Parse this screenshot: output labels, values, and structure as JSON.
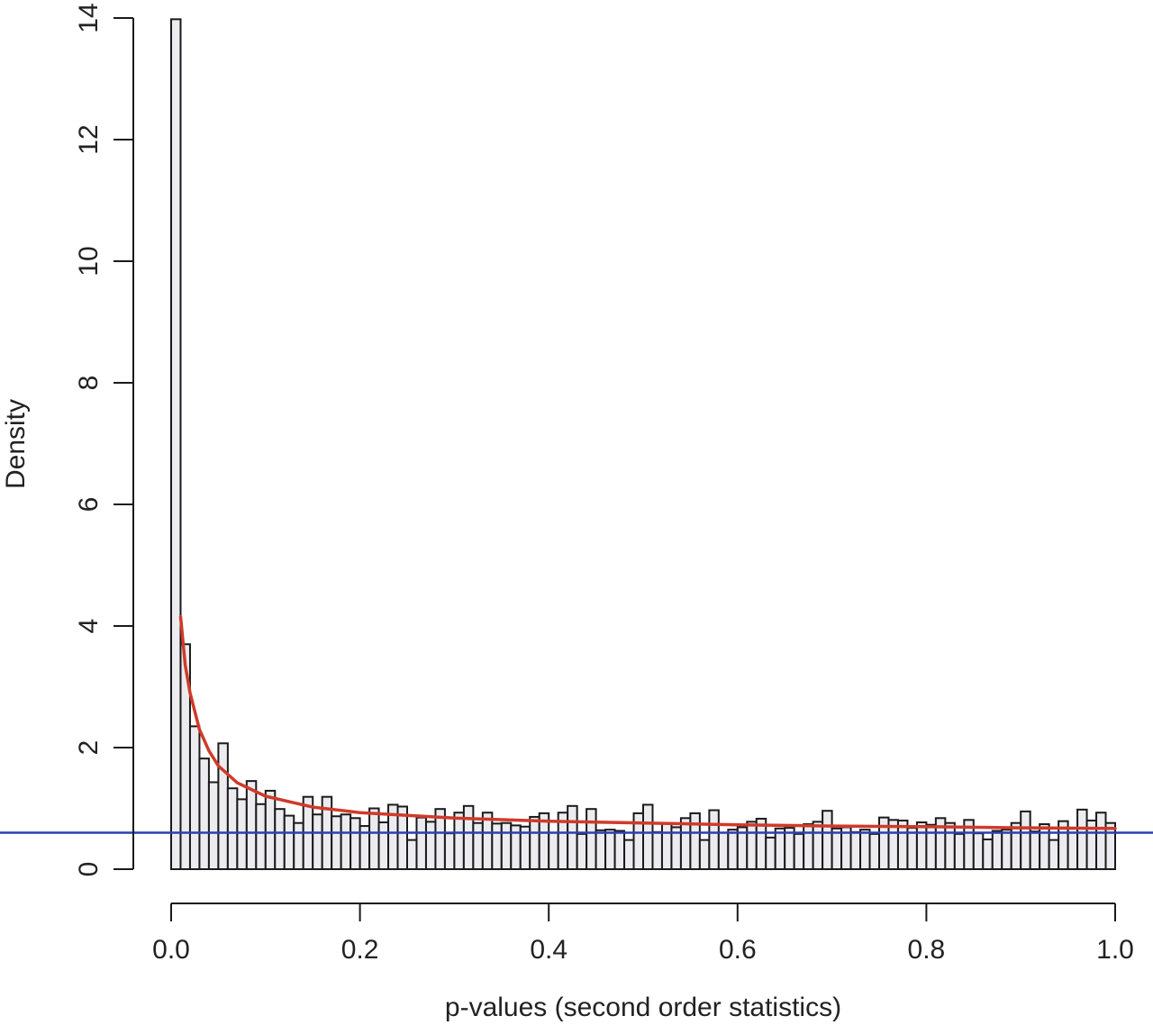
{
  "chart_data": {
    "type": "bar",
    "subtype": "histogram",
    "title": "",
    "xlabel": "p-values (second order statistics)",
    "ylabel": "Density",
    "xlim": [
      0,
      1
    ],
    "ylim": [
      0,
      14
    ],
    "x_ticks": [
      "0.0",
      "0.2",
      "0.4",
      "0.6",
      "0.8",
      "1.0"
    ],
    "y_ticks": [
      "0",
      "2",
      "4",
      "6",
      "8",
      "10",
      "12",
      "14"
    ],
    "bin_width": 0.01,
    "values": [
      13.98,
      3.7,
      2.35,
      1.82,
      1.43,
      2.07,
      1.33,
      1.15,
      1.45,
      1.07,
      1.29,
      0.99,
      0.88,
      0.76,
      1.19,
      0.9,
      1.19,
      0.87,
      0.9,
      0.84,
      0.71,
      1.0,
      0.77,
      1.06,
      1.03,
      0.48,
      0.85,
      0.78,
      0.99,
      0.59,
      0.93,
      1.04,
      0.76,
      0.93,
      0.75,
      0.76,
      0.72,
      0.7,
      0.86,
      0.92,
      0.6,
      0.93,
      1.04,
      0.58,
      0.99,
      0.64,
      0.65,
      0.63,
      0.48,
      0.92,
      1.06,
      0.61,
      0.75,
      0.69,
      0.84,
      0.92,
      0.48,
      0.97,
      0.6,
      0.65,
      0.69,
      0.78,
      0.83,
      0.52,
      0.67,
      0.68,
      0.58,
      0.74,
      0.78,
      0.96,
      0.67,
      0.69,
      0.61,
      0.65,
      0.58,
      0.85,
      0.81,
      0.8,
      0.68,
      0.77,
      0.73,
      0.84,
      0.76,
      0.58,
      0.81,
      0.59,
      0.49,
      0.63,
      0.65,
      0.76,
      0.95,
      0.62,
      0.74,
      0.48,
      0.79,
      0.67,
      0.98,
      0.8,
      0.93,
      0.76
    ],
    "series": [
      {
        "type": "line",
        "color": "#d03a2a",
        "description": "fitted density curve",
        "x": [
          0.01,
          0.015,
          0.02,
          0.03,
          0.04,
          0.05,
          0.07,
          0.1,
          0.15,
          0.2,
          0.3,
          0.4,
          0.5,
          0.6,
          0.7,
          0.8,
          0.9,
          1.0
        ],
        "y": [
          4.15,
          3.35,
          2.9,
          2.3,
          1.95,
          1.7,
          1.42,
          1.2,
          1.02,
          0.93,
          0.84,
          0.79,
          0.76,
          0.73,
          0.71,
          0.7,
          0.68,
          0.67
        ]
      },
      {
        "type": "hline",
        "color": "#2b3fb0",
        "description": "uniform null density level",
        "y": 0.6
      }
    ],
    "bar_fill": "#ececf0",
    "bar_stroke": "#1a1a1a",
    "grid": false,
    "legend": "none"
  }
}
